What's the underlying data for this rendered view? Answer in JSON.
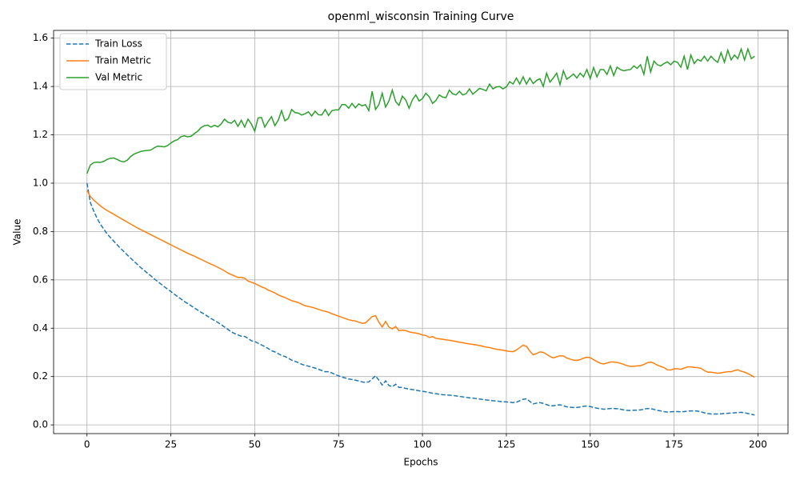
{
  "chart_data": {
    "type": "line",
    "title": "openml_wisconsin Training Curve",
    "xlabel": "Epochs",
    "ylabel": "Value",
    "grid": true,
    "legend": "upper left",
    "xlim": [
      -9.95,
      208.95
    ],
    "ylim": [
      -0.036,
      1.632
    ],
    "xticks": [
      0,
      25,
      50,
      75,
      100,
      125,
      150,
      175,
      200
    ],
    "yticks": [
      {
        "value": 0,
        "label": "0.0"
      },
      0.2,
      0.4,
      0.6,
      0.8,
      {
        "value": 1,
        "label": "1.0"
      },
      1.2,
      1.4,
      1.6
    ],
    "x": [
      0,
      1,
      2,
      3,
      4,
      5,
      6,
      7,
      8,
      9,
      10,
      11,
      12,
      13,
      14,
      15,
      16,
      17,
      18,
      19,
      20,
      21,
      22,
      23,
      24,
      25,
      26,
      27,
      28,
      29,
      30,
      31,
      32,
      33,
      34,
      35,
      36,
      37,
      38,
      39,
      40,
      41,
      42,
      43,
      44,
      45,
      46,
      47,
      48,
      49,
      50,
      51,
      52,
      53,
      54,
      55,
      56,
      57,
      58,
      59,
      60,
      61,
      62,
      63,
      64,
      65,
      66,
      67,
      68,
      69,
      70,
      71,
      72,
      73,
      74,
      75,
      76,
      77,
      78,
      79,
      80,
      81,
      82,
      83,
      84,
      85,
      86,
      87,
      88,
      89,
      90,
      91,
      92,
      93,
      94,
      95,
      96,
      97,
      98,
      99,
      100,
      101,
      102,
      103,
      104,
      105,
      106,
      107,
      108,
      109,
      110,
      111,
      112,
      113,
      114,
      115,
      116,
      117,
      118,
      119,
      120,
      121,
      122,
      123,
      124,
      125,
      126,
      127,
      128,
      129,
      130,
      131,
      132,
      133,
      134,
      135,
      136,
      137,
      138,
      139,
      140,
      141,
      142,
      143,
      144,
      145,
      146,
      147,
      148,
      149,
      150,
      151,
      152,
      153,
      154,
      155,
      156,
      157,
      158,
      159,
      160,
      161,
      162,
      163,
      164,
      165,
      166,
      167,
      168,
      169,
      170,
      171,
      172,
      173,
      174,
      175,
      176,
      177,
      178,
      179,
      180,
      181,
      182,
      183,
      184,
      185,
      186,
      187,
      188,
      189,
      190,
      191,
      192,
      193,
      194,
      195,
      196,
      197,
      198,
      199
    ],
    "series": [
      {
        "name": "Train Loss",
        "color": "#1f77b4",
        "linestyle": "dashed",
        "values": [
          1.0,
          0.92,
          0.885,
          0.855,
          0.83,
          0.81,
          0.79,
          0.775,
          0.76,
          0.745,
          0.73,
          0.717,
          0.703,
          0.69,
          0.677,
          0.664,
          0.651,
          0.64,
          0.628,
          0.617,
          0.605,
          0.594,
          0.583,
          0.572,
          0.562,
          0.552,
          0.541,
          0.531,
          0.521,
          0.511,
          0.502,
          0.493,
          0.484,
          0.475,
          0.466,
          0.458,
          0.449,
          0.44,
          0.432,
          0.424,
          0.415,
          0.405,
          0.395,
          0.385,
          0.378,
          0.372,
          0.367,
          0.366,
          0.358,
          0.348,
          0.345,
          0.338,
          0.331,
          0.324,
          0.316,
          0.307,
          0.302,
          0.295,
          0.287,
          0.283,
          0.276,
          0.268,
          0.263,
          0.258,
          0.251,
          0.246,
          0.243,
          0.239,
          0.235,
          0.23,
          0.225,
          0.22,
          0.22,
          0.215,
          0.208,
          0.203,
          0.198,
          0.194,
          0.19,
          0.188,
          0.185,
          0.182,
          0.178,
          0.176,
          0.178,
          0.19,
          0.203,
          0.185,
          0.165,
          0.182,
          0.163,
          0.158,
          0.168,
          0.155,
          0.155,
          0.151,
          0.148,
          0.146,
          0.144,
          0.141,
          0.139,
          0.137,
          0.134,
          0.131,
          0.129,
          0.127,
          0.125,
          0.124,
          0.123,
          0.122,
          0.12,
          0.118,
          0.116,
          0.114,
          0.112,
          0.111,
          0.109,
          0.107,
          0.105,
          0.103,
          0.102,
          0.1,
          0.099,
          0.097,
          0.096,
          0.095,
          0.094,
          0.092,
          0.094,
          0.1,
          0.106,
          0.108,
          0.097,
          0.087,
          0.09,
          0.092,
          0.089,
          0.084,
          0.079,
          0.079,
          0.082,
          0.083,
          0.079,
          0.075,
          0.073,
          0.072,
          0.072,
          0.074,
          0.077,
          0.078,
          0.076,
          0.072,
          0.069,
          0.067,
          0.065,
          0.066,
          0.068,
          0.068,
          0.067,
          0.065,
          0.062,
          0.06,
          0.06,
          0.061,
          0.061,
          0.062,
          0.065,
          0.068,
          0.067,
          0.064,
          0.06,
          0.058,
          0.055,
          0.053,
          0.054,
          0.055,
          0.055,
          0.054,
          0.055,
          0.057,
          0.058,
          0.058,
          0.057,
          0.054,
          0.05,
          0.047,
          0.045,
          0.045,
          0.045,
          0.046,
          0.047,
          0.048,
          0.049,
          0.05,
          0.051,
          0.052,
          0.05,
          0.047,
          0.044,
          0.041
        ]
      },
      {
        "name": "Train Metric",
        "color": "#ff7f0e",
        "linestyle": "solid",
        "values": [
          0.97,
          0.945,
          0.93,
          0.918,
          0.906,
          0.896,
          0.887,
          0.879,
          0.871,
          0.863,
          0.855,
          0.847,
          0.839,
          0.831,
          0.823,
          0.815,
          0.808,
          0.801,
          0.794,
          0.787,
          0.78,
          0.773,
          0.766,
          0.759,
          0.752,
          0.745,
          0.738,
          0.731,
          0.724,
          0.717,
          0.71,
          0.704,
          0.698,
          0.691,
          0.685,
          0.678,
          0.671,
          0.665,
          0.659,
          0.652,
          0.645,
          0.637,
          0.628,
          0.622,
          0.616,
          0.61,
          0.61,
          0.607,
          0.595,
          0.59,
          0.585,
          0.578,
          0.571,
          0.566,
          0.558,
          0.552,
          0.546,
          0.538,
          0.532,
          0.527,
          0.52,
          0.514,
          0.51,
          0.506,
          0.499,
          0.493,
          0.49,
          0.487,
          0.483,
          0.478,
          0.473,
          0.47,
          0.466,
          0.46,
          0.455,
          0.45,
          0.445,
          0.44,
          0.435,
          0.432,
          0.43,
          0.425,
          0.42,
          0.422,
          0.435,
          0.448,
          0.452,
          0.425,
          0.405,
          0.428,
          0.405,
          0.397,
          0.407,
          0.39,
          0.392,
          0.39,
          0.385,
          0.382,
          0.38,
          0.377,
          0.372,
          0.37,
          0.362,
          0.365,
          0.358,
          0.356,
          0.354,
          0.352,
          0.35,
          0.348,
          0.345,
          0.342,
          0.34,
          0.337,
          0.335,
          0.333,
          0.331,
          0.328,
          0.325,
          0.322,
          0.32,
          0.316,
          0.313,
          0.311,
          0.309,
          0.306,
          0.304,
          0.303,
          0.31,
          0.32,
          0.33,
          0.325,
          0.305,
          0.29,
          0.295,
          0.302,
          0.3,
          0.292,
          0.283,
          0.277,
          0.282,
          0.286,
          0.285,
          0.277,
          0.272,
          0.268,
          0.267,
          0.27,
          0.276,
          0.28,
          0.278,
          0.27,
          0.262,
          0.255,
          0.252,
          0.256,
          0.26,
          0.26,
          0.258,
          0.255,
          0.25,
          0.245,
          0.242,
          0.243,
          0.244,
          0.245,
          0.25,
          0.257,
          0.26,
          0.255,
          0.247,
          0.242,
          0.237,
          0.228,
          0.227,
          0.232,
          0.232,
          0.23,
          0.235,
          0.24,
          0.24,
          0.238,
          0.237,
          0.234,
          0.225,
          0.218,
          0.218,
          0.216,
          0.214,
          0.215,
          0.218,
          0.22,
          0.22,
          0.225,
          0.228,
          0.222,
          0.218,
          0.212,
          0.205,
          0.197
        ]
      },
      {
        "name": "Val Metric",
        "color": "#2ca02c",
        "linestyle": "solid",
        "values": [
          1.04,
          1.075,
          1.085,
          1.087,
          1.086,
          1.09,
          1.098,
          1.103,
          1.104,
          1.098,
          1.091,
          1.088,
          1.095,
          1.11,
          1.12,
          1.126,
          1.131,
          1.134,
          1.135,
          1.137,
          1.146,
          1.153,
          1.152,
          1.15,
          1.155,
          1.166,
          1.175,
          1.18,
          1.192,
          1.196,
          1.192,
          1.194,
          1.205,
          1.215,
          1.23,
          1.238,
          1.24,
          1.232,
          1.24,
          1.233,
          1.245,
          1.265,
          1.252,
          1.248,
          1.26,
          1.235,
          1.26,
          1.232,
          1.265,
          1.245,
          1.215,
          1.27,
          1.272,
          1.232,
          1.255,
          1.275,
          1.238,
          1.26,
          1.3,
          1.258,
          1.268,
          1.305,
          1.292,
          1.29,
          1.282,
          1.287,
          1.295,
          1.278,
          1.298,
          1.283,
          1.282,
          1.305,
          1.28,
          1.3,
          1.303,
          1.303,
          1.325,
          1.325,
          1.31,
          1.33,
          1.312,
          1.328,
          1.32,
          1.325,
          1.3,
          1.38,
          1.305,
          1.325,
          1.372,
          1.315,
          1.34,
          1.385,
          1.338,
          1.322,
          1.36,
          1.345,
          1.31,
          1.345,
          1.365,
          1.34,
          1.35,
          1.372,
          1.358,
          1.33,
          1.342,
          1.365,
          1.356,
          1.354,
          1.385,
          1.37,
          1.365,
          1.38,
          1.365,
          1.37,
          1.39,
          1.368,
          1.38,
          1.392,
          1.388,
          1.382,
          1.41,
          1.39,
          1.398,
          1.4,
          1.39,
          1.398,
          1.42,
          1.41,
          1.435,
          1.41,
          1.44,
          1.41,
          1.435,
          1.412,
          1.425,
          1.432,
          1.4,
          1.455,
          1.418,
          1.435,
          1.455,
          1.408,
          1.465,
          1.43,
          1.44,
          1.452,
          1.435,
          1.455,
          1.44,
          1.47,
          1.432,
          1.478,
          1.44,
          1.47,
          1.47,
          1.45,
          1.485,
          1.445,
          1.48,
          1.47,
          1.465,
          1.468,
          1.47,
          1.485,
          1.475,
          1.49,
          1.45,
          1.525,
          1.46,
          1.505,
          1.49,
          1.485,
          1.495,
          1.502,
          1.49,
          1.505,
          1.5,
          1.48,
          1.525,
          1.47,
          1.53,
          1.495,
          1.512,
          1.505,
          1.525,
          1.505,
          1.525,
          1.51,
          1.5,
          1.54,
          1.5,
          1.55,
          1.51,
          1.53,
          1.515,
          1.555,
          1.51,
          1.555,
          1.515,
          1.525
        ]
      }
    ]
  }
}
